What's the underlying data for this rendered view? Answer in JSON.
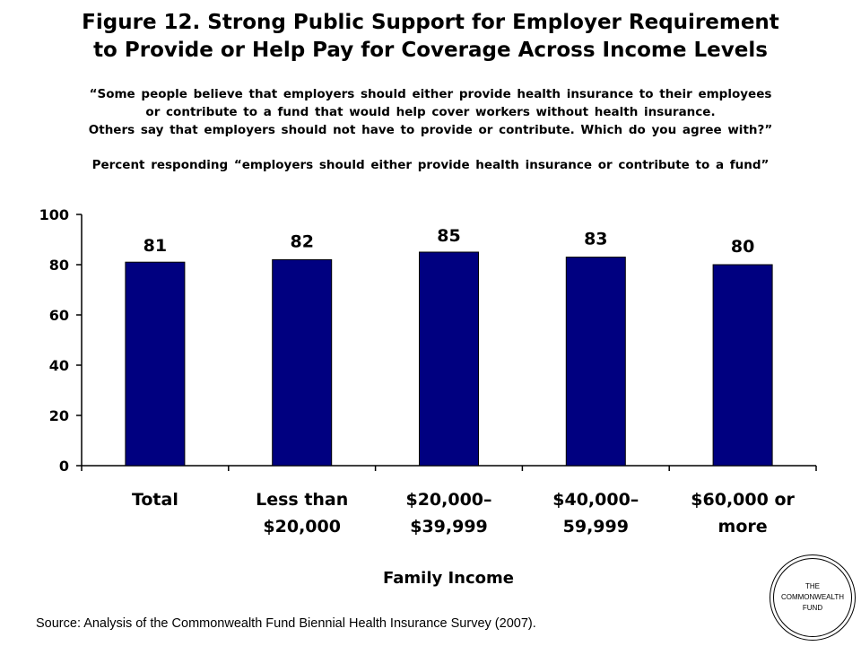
{
  "title": {
    "line1": "Figure 12. Strong Public Support for Employer Requirement",
    "line2": "to Provide or Help Pay for Coverage Across Income Levels"
  },
  "question": {
    "line1": "“Some people believe that employers should either provide health insurance to their employees",
    "line2": "or contribute to a fund that would help cover workers without health insurance.",
    "line3": "Others say that employers should not have to provide or contribute. Which do you agree with?”"
  },
  "subtitle": "Percent responding “employers should either provide health insurance or contribute to a fund”",
  "chart_data": {
    "type": "bar",
    "categories": [
      [
        "Total"
      ],
      [
        "Less than",
        "$20,000"
      ],
      [
        "$20,000–",
        "$39,999"
      ],
      [
        "$40,000–",
        "59,999"
      ],
      [
        "$60,000 or",
        "more"
      ]
    ],
    "values": [
      81,
      82,
      85,
      83,
      80
    ],
    "ylim": [
      0,
      100
    ],
    "yticks": [
      0,
      20,
      40,
      60,
      80,
      100
    ],
    "xlabel": "Family Income",
    "ylabel": "",
    "bar_color": "#000080",
    "grid": false,
    "legend": "none"
  },
  "source": "Source: Analysis of the Commonwealth Fund Biennial Health Insurance Survey (2007).",
  "logo": {
    "line1": "THE",
    "line2": "COMMONWEALTH",
    "line3": "FUND"
  }
}
